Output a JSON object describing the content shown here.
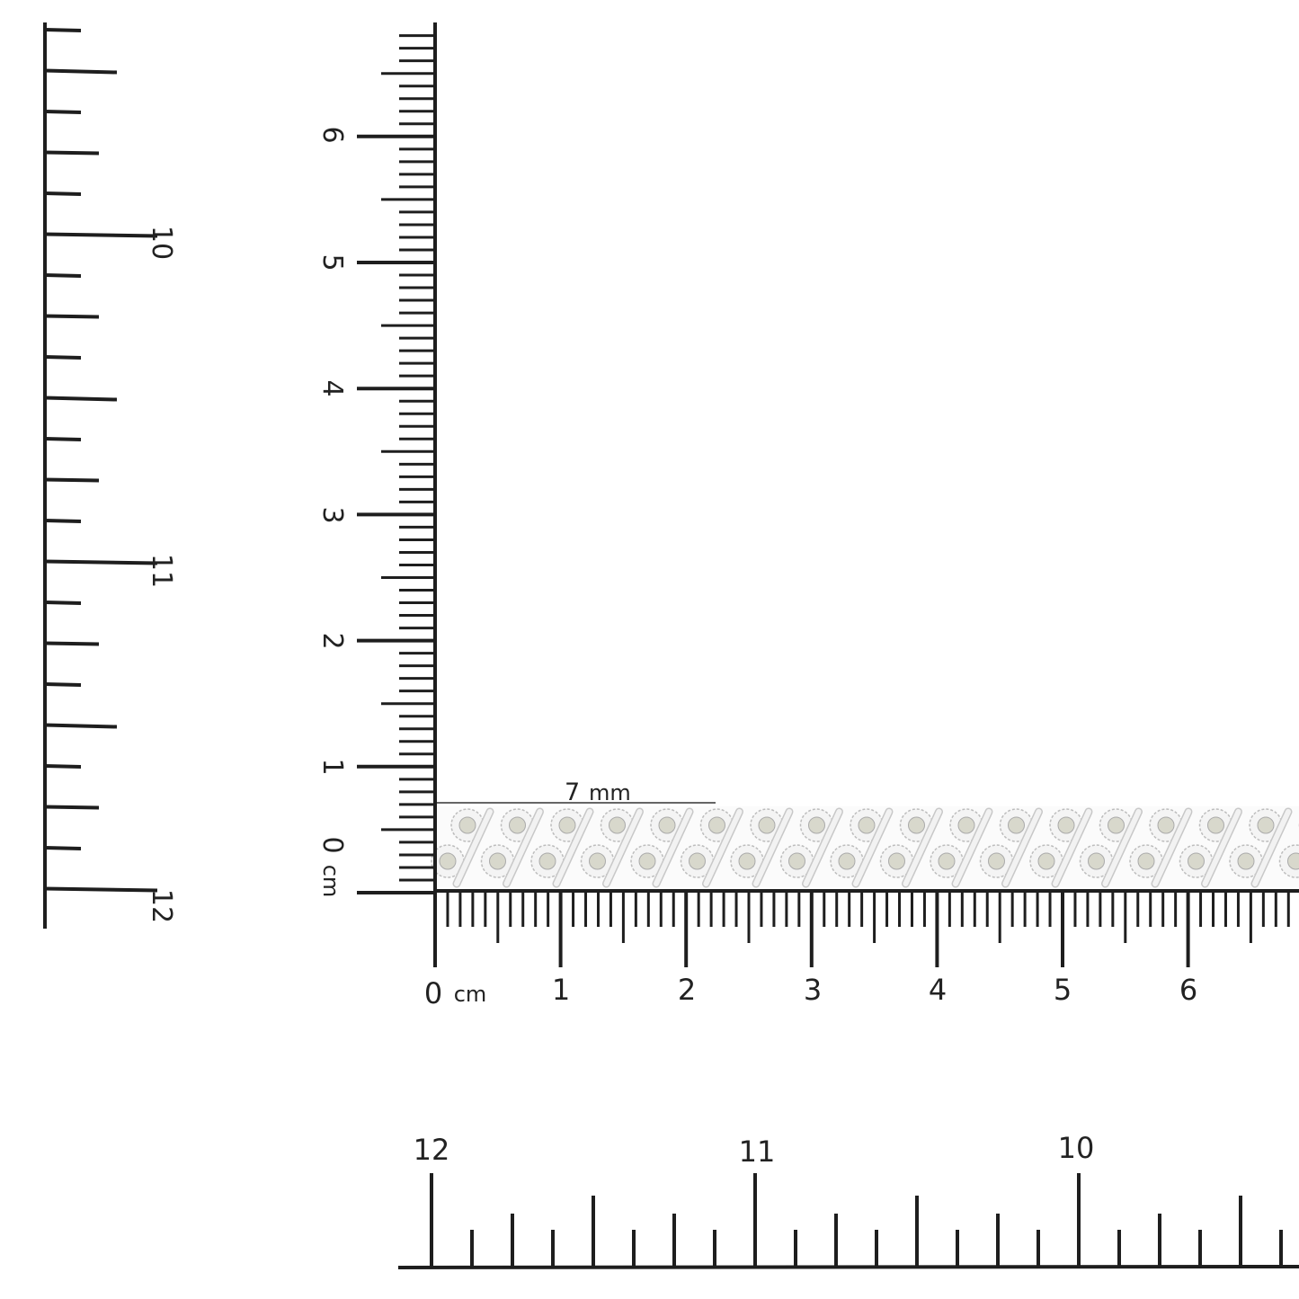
{
  "inch_ruler_left": {
    "labels": [
      "10",
      "11",
      "12"
    ]
  },
  "cm_ruler_vertical": {
    "labels": [
      "1",
      "2",
      "3",
      "4",
      "5",
      "6"
    ],
    "zero_label": "0",
    "unit": "cm"
  },
  "cm_ruler_horizontal": {
    "labels": [
      "1",
      "2",
      "3",
      "4",
      "5",
      "6"
    ],
    "zero_label": "0",
    "unit": "cm"
  },
  "inch_ruler_bottom": {
    "labels": [
      "12",
      "11",
      "10"
    ]
  },
  "measurement": {
    "width_label": "7",
    "width_unit": "mm"
  },
  "colors": {
    "ink": "#1e1e1e",
    "metal": "#f2f2f2",
    "stone": "#d8d8cc"
  }
}
